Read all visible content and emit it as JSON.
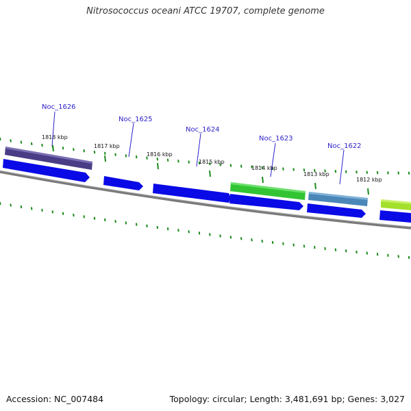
{
  "header": {
    "title": "Nitrosococcus oceani ATCC 19707, complete genome"
  },
  "footer": {
    "accession": "Accession: NC_007484",
    "stats": "Topology: circular; Length: 3,481,691 bp; Genes: 3,027"
  },
  "colors": {
    "backbone": "#7a7a7a",
    "tick": "#1c8a1c",
    "cds_forward": "#0a0ae6",
    "label": "#2a1fc9",
    "feature_noc1626": "#4a3d86",
    "feature_noc1623": "#33c433",
    "feature_noc1622": "#4a86b8",
    "feature_next": "#a3e02c"
  },
  "ruler": {
    "marks": [
      {
        "label": "1818 kbp",
        "kbp": 1818
      },
      {
        "label": "1817 kbp",
        "kbp": 1817
      },
      {
        "label": "1816 kbp",
        "kbp": 1816
      },
      {
        "label": "1815 kbp",
        "kbp": 1815
      },
      {
        "label": "1814 kbp",
        "kbp": 1814
      },
      {
        "label": "1813 kbp",
        "kbp": 1813
      },
      {
        "label": "1812 kbp",
        "kbp": 1812
      }
    ]
  },
  "genes": [
    {
      "label": "Noc_1626"
    },
    {
      "label": "Noc_1625"
    },
    {
      "label": "Noc_1624"
    },
    {
      "label": "Noc_1623"
    },
    {
      "label": "Noc_1622"
    }
  ]
}
